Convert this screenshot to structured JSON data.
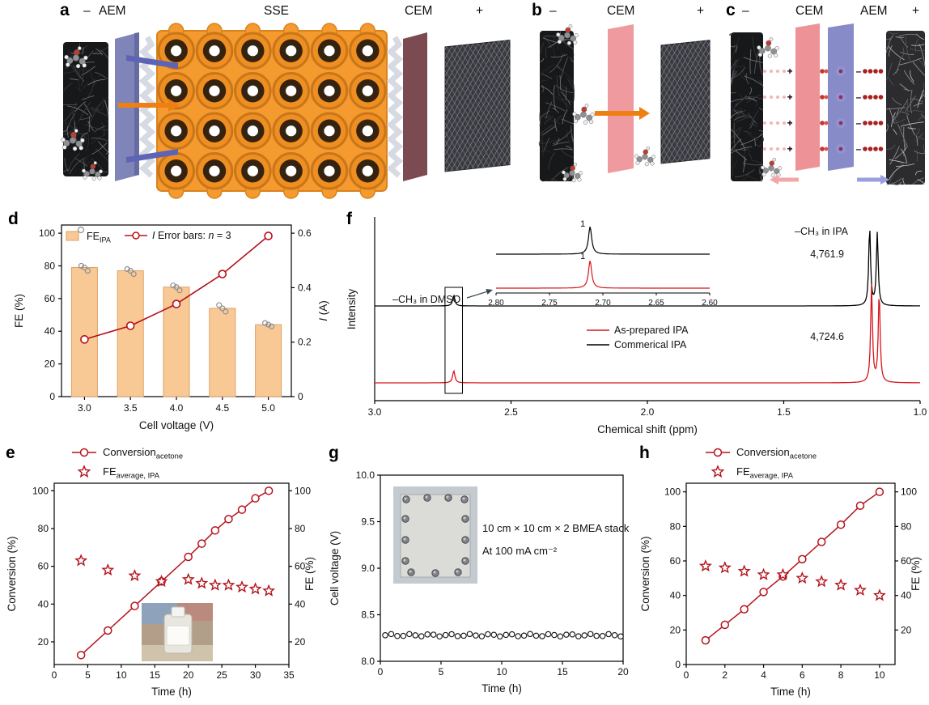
{
  "panel_a": {
    "label": "a",
    "neg": "–",
    "pos": "+",
    "aem": "AEM",
    "sse": "SSE",
    "cem": "CEM"
  },
  "panel_b": {
    "label": "b",
    "neg": "–",
    "pos": "+",
    "cem": "CEM"
  },
  "panel_c": {
    "label": "c",
    "neg": "–",
    "pos": "+",
    "cem": "CEM",
    "aem": "AEM"
  },
  "panel_d": {
    "label": "d",
    "legend_bar_main": "FE",
    "legend_bar_sub": "IPA",
    "legend_line": "I",
    "note_pre": "Error bars: ",
    "note_n": "n",
    "note_post": " = 3"
  },
  "panel_e": {
    "label": "e",
    "legend_conv_main": "Conversion",
    "legend_conv_sub": "acetone",
    "legend_fe_main": "FE",
    "legend_fe_sub": "average, IPA"
  },
  "panel_f": {
    "label": "f"
  },
  "panel_g": {
    "label": "g",
    "note1": "10 cm × 10 cm × 2 BMEA stack",
    "note2": "At 100 mA cm⁻²"
  },
  "panel_h": {
    "label": "h",
    "legend_conv_main": "Conversion",
    "legend_conv_sub": "acetone",
    "legend_fe_main": "FE",
    "legend_fe_sub": "average, IPA"
  },
  "chart_data": [
    {
      "id": "d",
      "type": "bar",
      "categories": [
        "3.0",
        "3.5",
        "4.0",
        "4.5",
        "5.0"
      ],
      "series": [
        {
          "name": "FE_IPA",
          "kind": "bar",
          "axis": "left",
          "values": [
            79,
            77,
            67,
            54,
            44
          ],
          "replicates": [
            [
              80,
              79,
              77
            ],
            [
              78,
              77,
              75
            ],
            [
              68,
              67,
              65
            ],
            [
              56,
              54,
              52
            ],
            [
              45,
              44,
              43
            ]
          ],
          "fill": "#f9c995",
          "edge": "#dfa066"
        },
        {
          "name": "I",
          "kind": "line",
          "axis": "right",
          "values": [
            0.21,
            0.26,
            0.34,
            0.45,
            0.59
          ],
          "color": "#b5121b"
        }
      ],
      "xlabel": "Cell voltage (V)",
      "ylabel_left": "FE (%)",
      "ylim_left": [
        0,
        105
      ],
      "yticks_left": [
        0,
        20,
        40,
        60,
        80,
        100
      ],
      "ylabel_right_italic": "I",
      "ylabel_right_rest": " (A)",
      "ylim_right": [
        0,
        0.63
      ],
      "yticks_right": [
        "0",
        "0.2",
        "0.4",
        "0.6"
      ]
    },
    {
      "id": "f",
      "type": "line",
      "xlabel": "Chemical shift (ppm)",
      "ylabel": "Intensity",
      "x_reversed": true,
      "xlim": [
        3.0,
        1.0
      ],
      "xticks": [
        "3.0",
        "2.5",
        "2.0",
        "1.5",
        "1.0"
      ],
      "series": [
        {
          "name": "Commerical IPA",
          "color": "#000000",
          "baseline": "upper",
          "ipa_doublet_ppm": [
            1.185,
            1.157
          ],
          "dmso_peak_ppm": 2.71,
          "peak_label": "4,761.9"
        },
        {
          "name": "As-prepared IPA",
          "color": "#d8151c",
          "baseline": "lower",
          "ipa_doublet_ppm": [
            1.178,
            1.15
          ],
          "dmso_peak_ppm": 2.71,
          "peak_label": "4,724.6"
        }
      ],
      "annotation_dmso": "–CH₃ in DMSO",
      "annotation_ipa": "–CH₃ in IPA",
      "inset": {
        "xlim": [
          2.8,
          2.6
        ],
        "xticks": [
          "2.80",
          "2.75",
          "2.70",
          "2.65",
          "2.60"
        ],
        "peak_ppm": 2.712,
        "integrals": [
          "1",
          "1"
        ]
      }
    },
    {
      "id": "e",
      "type": "line",
      "x": [
        4,
        8,
        12,
        16,
        20,
        22,
        24,
        26,
        28,
        30,
        32
      ],
      "series": [
        {
          "name": "Conversion_acetone",
          "marker": "circle",
          "axis": "left",
          "line": true,
          "color": "#b5121b",
          "values": [
            13,
            26,
            39,
            52,
            65,
            72,
            79,
            85,
            90,
            96,
            100
          ]
        },
        {
          "name": "FE_average,IPA",
          "marker": "star",
          "axis": "right",
          "line": false,
          "color": "#b5121b",
          "values": [
            63,
            58,
            55,
            52,
            53,
            51,
            50,
            50,
            49,
            48,
            47
          ]
        }
      ],
      "xlabel": "Time (h)",
      "xlim": [
        0,
        35
      ],
      "xticks": [
        0,
        5,
        10,
        15,
        20,
        25,
        30,
        35
      ],
      "ylabel_left": "Conversion (%)",
      "ylabel_right": "FE (%)",
      "ylim": [
        8,
        104
      ],
      "yticks": [
        20,
        40,
        60,
        80,
        100
      ]
    },
    {
      "id": "g",
      "type": "scatter",
      "xlabel": "Time (h)",
      "xlim": [
        0,
        20
      ],
      "xticks": [
        0,
        5,
        10,
        15,
        20
      ],
      "ylabel": "Cell voltage (V)",
      "ylim": [
        8.0,
        10.0
      ],
      "yticks": [
        "8.0",
        "8.5",
        "9.0",
        "9.5",
        "10.0"
      ],
      "series": [
        {
          "name": "Cell voltage",
          "mean_value": 8.28,
          "x_start": 0.4,
          "x_end": 19.8,
          "n_points": 40,
          "color": "#000000"
        }
      ]
    },
    {
      "id": "h",
      "type": "line",
      "x": [
        1,
        2,
        3,
        4,
        5,
        6,
        7,
        8,
        9,
        10
      ],
      "series": [
        {
          "name": "Conversion_acetone",
          "marker": "circle",
          "axis": "left",
          "line": true,
          "color": "#b5121b",
          "values": [
            14,
            23,
            32,
            42,
            51,
            61,
            71,
            81,
            92,
            100
          ]
        },
        {
          "name": "FE_average,IPA",
          "marker": "star",
          "axis": "right",
          "line": false,
          "color": "#b5121b",
          "values": [
            57,
            56,
            54,
            52,
            52,
            50,
            48,
            46,
            43,
            40
          ]
        }
      ],
      "xlabel": "Time (h)",
      "xlim": [
        0,
        10.8
      ],
      "xticks": [
        0,
        2,
        4,
        6,
        8,
        10
      ],
      "ylabel_left": "Conversion (%)",
      "ylabel_right": "FE (%)",
      "ylim_left": [
        0,
        105
      ],
      "yticks_left": [
        0,
        20,
        40,
        60,
        80,
        100
      ],
      "ylim_right": [
        0,
        105
      ],
      "yticks_right": [
        20,
        40,
        60,
        80,
        100
      ]
    }
  ]
}
